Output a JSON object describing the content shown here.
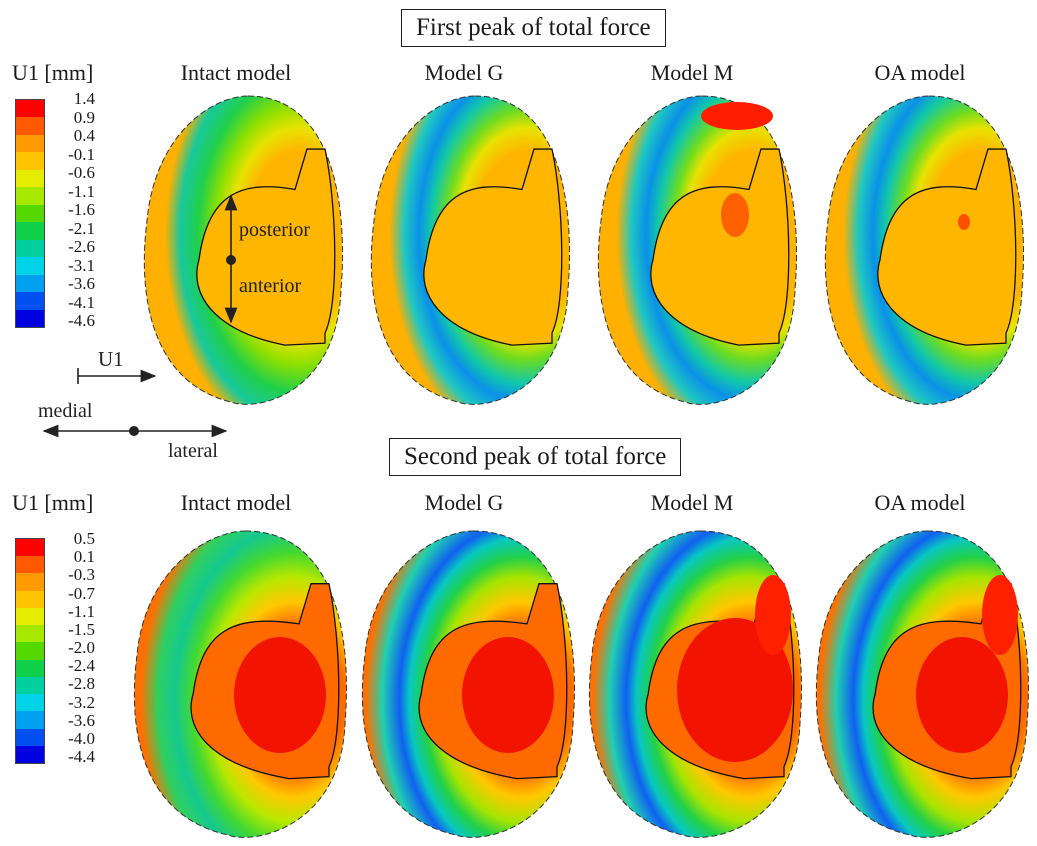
{
  "panels": {
    "top": {
      "title": "First peak of total force",
      "legend_title": "U1 [mm]",
      "legend_ticks": [
        "1.4",
        "0.9",
        "0.4",
        "-0.1",
        "-0.6",
        "-1.1",
        "-1.6",
        "-2.1",
        "-2.6",
        "-3.1",
        "-3.6",
        "-4.1",
        "-4.6"
      ],
      "models": [
        "Intact model",
        "Model G",
        "Model M",
        "OA model"
      ]
    },
    "bottom": {
      "title": "Second peak of total force",
      "legend_title": "U1 [mm]",
      "legend_ticks": [
        "0.5",
        "0.1",
        "-0.3",
        "-0.7",
        "-1.1",
        "-1.5",
        "-2.0",
        "-2.4",
        "-2.8",
        "-3.2",
        "-3.6",
        "-4.0",
        "-4.4"
      ],
      "models": [
        "Intact model",
        "Model G",
        "Model M",
        "OA model"
      ]
    }
  },
  "orientation": {
    "axis_label": "U1",
    "medial": "medial",
    "lateral": "lateral",
    "posterior": "posterior",
    "anterior": "anterior"
  },
  "colormap": [
    "#ff0000",
    "#ff5a00",
    "#ff9a00",
    "#ffc400",
    "#e6ec00",
    "#a6e800",
    "#55d800",
    "#10d04a",
    "#00d0a0",
    "#00d2e8",
    "#00a0f0",
    "#0050f0",
    "#0000e0"
  ]
}
